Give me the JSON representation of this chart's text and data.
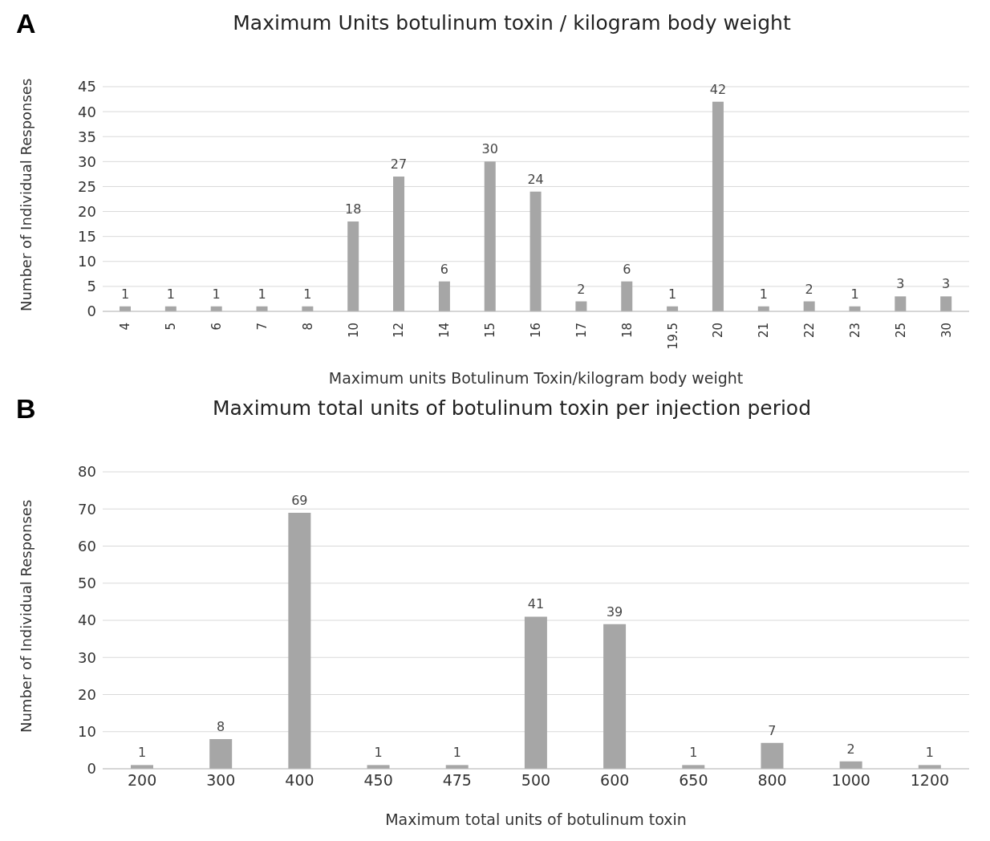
{
  "chart_data": [
    {
      "type": "bar",
      "title": "Maximum Units botulinum toxin / kilogram body weight",
      "xlabel": "Maximum units Botulinum Toxin/kilogram body weight",
      "ylabel": "Number of Individual Responses",
      "annotations": [
        "A"
      ],
      "categories": [
        "4",
        "5",
        "6",
        "7",
        "8",
        "10",
        "12",
        "14",
        "15",
        "16",
        "17",
        "18",
        "19.5",
        "20",
        "21",
        "22",
        "23",
        "25",
        "30"
      ],
      "values": [
        1,
        1,
        1,
        1,
        1,
        18,
        27,
        6,
        30,
        24,
        2,
        6,
        1,
        42,
        1,
        2,
        1,
        3,
        3
      ],
      "color": "#a6a6a6",
      "ylim": [
        0,
        45
      ],
      "yticks": [
        0,
        5,
        10,
        15,
        20,
        25,
        30,
        35,
        40,
        45
      ],
      "grid": "y",
      "data_labels": true
    },
    {
      "type": "bar",
      "title": "Maximum total units of botulinum toxin per injection period",
      "xlabel": "Maximum total units of botulinum toxin",
      "ylabel": "Number of Individual Responses",
      "annotations": [
        "B"
      ],
      "categories": [
        "200",
        "300",
        "400",
        "450",
        "475",
        "500",
        "600",
        "650",
        "800",
        "1000",
        "1200"
      ],
      "values": [
        1,
        8,
        69,
        1,
        1,
        41,
        39,
        1,
        7,
        2,
        1
      ],
      "color": "#a6a6a6",
      "ylim": [
        0,
        80
      ],
      "yticks": [
        0,
        10,
        20,
        30,
        40,
        50,
        60,
        70,
        80
      ],
      "grid": "y",
      "data_labels": true
    }
  ]
}
